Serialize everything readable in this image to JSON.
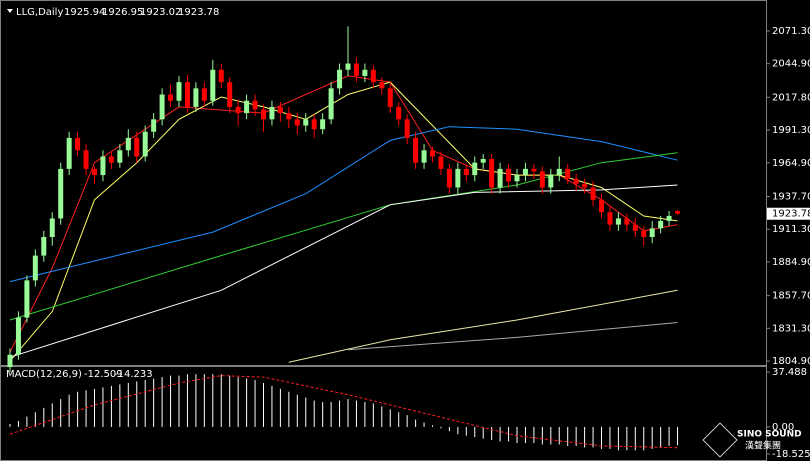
{
  "chart_data": [
    {
      "type": "candlestick",
      "title": "LLG,Daily",
      "up_color": "#98fb98",
      "down_color": "#ff0000",
      "ylim": [
        1801.7,
        2096.3
      ],
      "yticks": [
        {
          "value": 2071.3,
          "label": "2071.30"
        },
        {
          "value": 2044.9,
          "label": "2044.90"
        },
        {
          "value": 2017.8,
          "label": "2017.80"
        },
        {
          "value": 1991.3,
          "label": "1991.30"
        },
        {
          "value": 1964.9,
          "label": "1964.90"
        },
        {
          "value": 1937.7,
          "label": "1937.70"
        },
        {
          "value": 1911.3,
          "label": "1911.30"
        },
        {
          "value": 1884.9,
          "label": "1884.90"
        },
        {
          "value": 1857.7,
          "label": "1857.70"
        },
        {
          "value": 1831.3,
          "label": "1831.30"
        },
        {
          "value": 1804.9,
          "label": "1804.90"
        }
      ],
      "ohlc": [
        [
          1800,
          1815,
          1796,
          1810
        ],
        [
          1810,
          1845,
          1806,
          1840
        ],
        [
          1840,
          1874,
          1836,
          1870
        ],
        [
          1870,
          1895,
          1865,
          1890
        ],
        [
          1890,
          1910,
          1885,
          1905
        ],
        [
          1905,
          1925,
          1898,
          1920
        ],
        [
          1920,
          1965,
          1915,
          1960
        ],
        [
          1960,
          1990,
          1955,
          1985
        ],
        [
          1985,
          1990,
          1970,
          1975
        ],
        [
          1975,
          1980,
          1955,
          1960
        ],
        [
          1960,
          1962,
          1948,
          1955
        ],
        [
          1955,
          1975,
          1950,
          1970
        ],
        [
          1970,
          1974,
          1960,
          1965
        ],
        [
          1965,
          1980,
          1961,
          1975
        ],
        [
          1975,
          1992,
          1970,
          1985
        ],
        [
          1985,
          1990,
          1965,
          1970
        ],
        [
          1970,
          1995,
          1966,
          1990
        ],
        [
          1990,
          2005,
          1985,
          2000
        ],
        [
          2000,
          2025,
          1995,
          2020
        ],
        [
          2020,
          2028,
          2010,
          2015
        ],
        [
          2015,
          2035,
          2010,
          2030
        ],
        [
          2030,
          2036,
          2005,
          2010
        ],
        [
          2010,
          2030,
          2006,
          2025
        ],
        [
          2025,
          2030,
          2010,
          2015
        ],
        [
          2015,
          2048,
          2011,
          2040
        ],
        [
          2040,
          2045,
          2025,
          2030
        ],
        [
          2030,
          2034,
          2005,
          2010
        ],
        [
          2010,
          2016,
          1995,
          2005
        ],
        [
          2005,
          2020,
          2000,
          2015
        ],
        [
          2015,
          2020,
          2003,
          2008
        ],
        [
          2008,
          2012,
          1990,
          2000
        ],
        [
          2000,
          2015,
          1995,
          2010
        ],
        [
          2010,
          2014,
          1998,
          2005
        ],
        [
          2005,
          2010,
          1993,
          2000
        ],
        [
          2000,
          2005,
          1988,
          1995
        ],
        [
          1995,
          2005,
          1990,
          2000
        ],
        [
          2000,
          2004,
          1985,
          1992
        ],
        [
          1992,
          2005,
          1988,
          2000
        ],
        [
          2000,
          2030,
          1996,
          2025
        ],
        [
          2025,
          2045,
          2020,
          2040
        ],
        [
          2040,
          2075,
          2035,
          2045
        ],
        [
          2045,
          2050,
          2030,
          2035
        ],
        [
          2035,
          2045,
          2030,
          2040
        ],
        [
          2040,
          2044,
          2025,
          2030
        ],
        [
          2030,
          2034,
          2020,
          2025
        ],
        [
          2025,
          2030,
          2005,
          2010
        ],
        [
          2010,
          2014,
          1995,
          2000
        ],
        [
          2000,
          2004,
          1980,
          1985
        ],
        [
          1985,
          1990,
          1960,
          1965
        ],
        [
          1965,
          1980,
          1960,
          1975
        ],
        [
          1975,
          1978,
          1965,
          1970
        ],
        [
          1970,
          1974,
          1955,
          1960
        ],
        [
          1960,
          1964,
          1940,
          1945
        ],
        [
          1945,
          1965,
          1940,
          1960
        ],
        [
          1960,
          1964,
          1950,
          1955
        ],
        [
          1955,
          1970,
          1950,
          1965
        ],
        [
          1965,
          1972,
          1960,
          1968
        ],
        [
          1968,
          1972,
          1940,
          1945
        ],
        [
          1945,
          1965,
          1940,
          1960
        ],
        [
          1960,
          1964,
          1945,
          1950
        ],
        [
          1950,
          1960,
          1945,
          1955
        ],
        [
          1955,
          1965,
          1950,
          1960
        ],
        [
          1960,
          1964,
          1952,
          1958
        ],
        [
          1958,
          1962,
          1940,
          1945
        ],
        [
          1945,
          1960,
          1940,
          1955
        ],
        [
          1955,
          1970,
          1950,
          1960
        ],
        [
          1960,
          1964,
          1948,
          1952
        ],
        [
          1952,
          1956,
          1942,
          1948
        ],
        [
          1948,
          1952,
          1940,
          1945
        ],
        [
          1945,
          1950,
          1930,
          1935
        ],
        [
          1935,
          1940,
          1920,
          1925
        ],
        [
          1925,
          1930,
          1910,
          1915
        ],
        [
          1915,
          1925,
          1910,
          1920
        ],
        [
          1920,
          1924,
          1910,
          1915
        ],
        [
          1915,
          1920,
          1905,
          1910
        ],
        [
          1910,
          1914,
          1898,
          1905
        ],
        [
          1905,
          1918,
          1900,
          1912
        ],
        [
          1912,
          1922,
          1908,
          1918
        ],
        [
          1918,
          1926,
          1914,
          1922
        ],
        [
          1925.94,
          1926.95,
          1923.02,
          1923.78
        ]
      ],
      "series": [
        {
          "color": "#ff2020",
          "x": [
            0,
            5,
            10,
            20,
            30,
            40,
            45,
            50,
            55,
            60,
            65,
            70,
            75,
            79
          ],
          "values": [
            1812,
            1880,
            1965,
            2010,
            2005,
            2035,
            2030,
            1975,
            1960,
            1955,
            1955,
            1935,
            1910,
            1915
          ]
        },
        {
          "color": "#ffff66",
          "x": [
            0,
            5,
            10,
            15,
            20,
            25,
            30,
            35,
            40,
            45,
            50,
            55,
            60,
            65,
            70,
            75,
            79
          ],
          "values": [
            1805,
            1845,
            1935,
            1965,
            2000,
            2018,
            2010,
            2000,
            2020,
            2030,
            1995,
            1960,
            1955,
            1955,
            1945,
            1922,
            1918
          ]
        },
        {
          "color": "#1e90ff",
          "x": [
            0,
            24,
            35,
            45,
            52,
            60,
            70,
            79
          ],
          "values": [
            1869,
            1909,
            1940,
            1983,
            1994,
            1992,
            1982,
            1967
          ]
        },
        {
          "color": "#32cd32",
          "x": [
            0,
            24,
            45,
            60,
            70,
            79
          ],
          "values": [
            1838,
            1888,
            1931,
            1947,
            1965,
            1973
          ]
        },
        {
          "color": "#ffffff",
          "x": [
            0,
            25,
            45,
            55,
            70,
            79
          ],
          "values": [
            1808,
            1862,
            1931,
            1941,
            1943,
            1947
          ]
        },
        {
          "color": "#eee8aa",
          "x": [
            33,
            45,
            60,
            79
          ],
          "values": [
            1804,
            1822,
            1838,
            1862
          ]
        },
        {
          "color": "#a9a9a9",
          "x": [
            40,
            60,
            79
          ],
          "values": [
            1814,
            1824,
            1836
          ]
        }
      ]
    },
    {
      "type": "macd",
      "title": "MACD(12,26,9)",
      "ylim": [
        -22.6,
        40.9
      ],
      "yticks": [
        37.488,
        {
          "value": 0,
          "label": "0.00"
        },
        -18.525
      ],
      "histogram_color": "#ffffff",
      "histogram": [
        2,
        4,
        7,
        10,
        13,
        16,
        19,
        22,
        24,
        25,
        26,
        27,
        28,
        29,
        30,
        31,
        32,
        33,
        34,
        35,
        35,
        36,
        36,
        36,
        36,
        36,
        35,
        34,
        33,
        32,
        30,
        28,
        26,
        24,
        22,
        20,
        18,
        17,
        17,
        18,
        19,
        18,
        17,
        16,
        14,
        12,
        10,
        8,
        5,
        3,
        1,
        -1,
        -3,
        -5,
        -6,
        -7,
        -8,
        -9,
        -10,
        -10,
        -11,
        -11,
        -11,
        -12,
        -12,
        -12,
        -13,
        -13,
        -14,
        -14,
        -15,
        -15,
        -16,
        -16,
        -16,
        -16,
        -15,
        -14,
        -13,
        -12.509
      ],
      "signal": {
        "color": "#ff2020",
        "x": [
          0,
          10,
          20,
          25,
          30,
          40,
          50,
          60,
          70,
          79
        ],
        "values": [
          -5,
          15,
          30,
          35,
          34,
          22,
          8,
          -6,
          -13,
          -14.233
        ]
      },
      "watermark": "SINO SOUND",
      "watermark_sub": "漢聲集團"
    }
  ]
}
